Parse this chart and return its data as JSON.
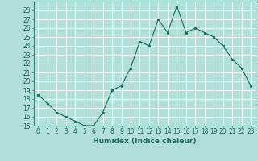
{
  "x": [
    0,
    1,
    2,
    3,
    4,
    5,
    6,
    7,
    8,
    9,
    10,
    11,
    12,
    13,
    14,
    15,
    16,
    17,
    18,
    19,
    20,
    21,
    22,
    23
  ],
  "y": [
    18.5,
    17.5,
    16.5,
    16.0,
    15.5,
    15.0,
    15.0,
    16.5,
    19.0,
    19.5,
    21.5,
    24.5,
    24.0,
    27.0,
    25.5,
    28.5,
    25.5,
    26.0,
    25.5,
    25.0,
    24.0,
    22.5,
    21.5,
    19.5
  ],
  "xlim": [
    -0.5,
    23.5
  ],
  "ylim": [
    15,
    29
  ],
  "yticks": [
    15,
    16,
    17,
    18,
    19,
    20,
    21,
    22,
    23,
    24,
    25,
    26,
    27,
    28
  ],
  "xticks": [
    0,
    1,
    2,
    3,
    4,
    5,
    6,
    7,
    8,
    9,
    10,
    11,
    12,
    13,
    14,
    15,
    16,
    17,
    18,
    19,
    20,
    21,
    22,
    23
  ],
  "xlabel": "Humidex (Indice chaleur)",
  "line_color": "#1a6b5a",
  "marker_color": "#1a6b5a",
  "bg_color": "#b2e0d8",
  "grid_color": "#ffffff",
  "tick_label_fontsize": 5.5,
  "xlabel_fontsize": 6.5
}
